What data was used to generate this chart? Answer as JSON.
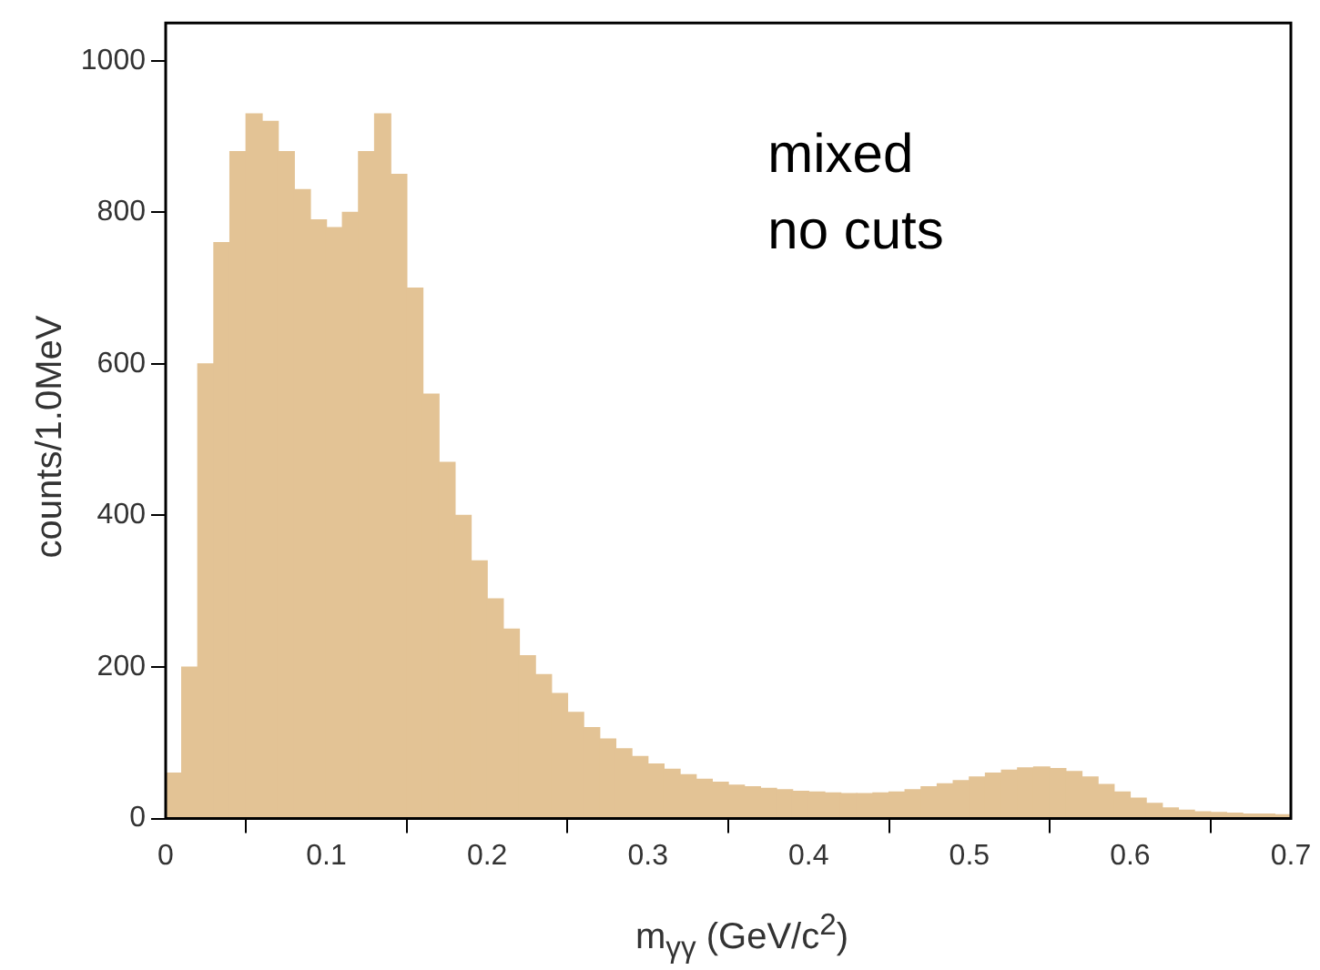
{
  "chart_data": {
    "type": "histogram",
    "xlabel": "m$_{γγ}$ (GeV/c$^{2}$)",
    "ylabel": "counts/1.0MeV",
    "annotations": [
      "mixed",
      "no cuts"
    ],
    "bins": [
      0,
      0.01,
      0.02,
      0.03,
      0.04,
      0.05,
      0.06,
      0.07,
      0.08,
      0.09,
      0.1,
      0.11,
      0.12,
      0.13,
      0.14,
      0.15,
      0.16,
      0.17,
      0.18,
      0.19,
      0.2,
      0.21,
      0.22,
      0.23,
      0.24,
      0.25,
      0.26,
      0.27,
      0.28,
      0.29,
      0.3,
      0.31,
      0.32,
      0.33,
      0.34,
      0.35,
      0.36,
      0.37,
      0.38,
      0.39,
      0.4,
      0.41,
      0.42,
      0.43,
      0.44,
      0.45,
      0.46,
      0.47,
      0.48,
      0.49,
      0.5,
      0.51,
      0.52,
      0.53,
      0.54,
      0.55,
      0.56,
      0.57,
      0.58,
      0.59,
      0.6,
      0.61,
      0.62,
      0.63,
      0.64,
      0.65,
      0.66,
      0.67,
      0.68,
      0.69,
      0.7
    ],
    "values": [
      60,
      200,
      600,
      760,
      880,
      930,
      920,
      880,
      830,
      790,
      780,
      800,
      880,
      930,
      850,
      700,
      560,
      470,
      400,
      340,
      290,
      250,
      215,
      190,
      165,
      140,
      120,
      105,
      92,
      82,
      72,
      65,
      58,
      52,
      48,
      44,
      42,
      40,
      38,
      36,
      35,
      34,
      33,
      33,
      34,
      35,
      38,
      42,
      46,
      50,
      55,
      60,
      64,
      67,
      68,
      66,
      62,
      55,
      45,
      35,
      27,
      20,
      14,
      11,
      9,
      8,
      7,
      6,
      6,
      5
    ],
    "color": "#e3c395",
    "xlim": [
      0,
      0.7
    ],
    "xticks": [
      0,
      0.1,
      0.2,
      0.3,
      0.4,
      0.5,
      0.6,
      0.7
    ],
    "ylim": [
      0,
      1050
    ],
    "yticks": [
      0,
      200,
      400,
      600,
      800,
      1000
    ],
    "grid": false,
    "legend": false
  }
}
